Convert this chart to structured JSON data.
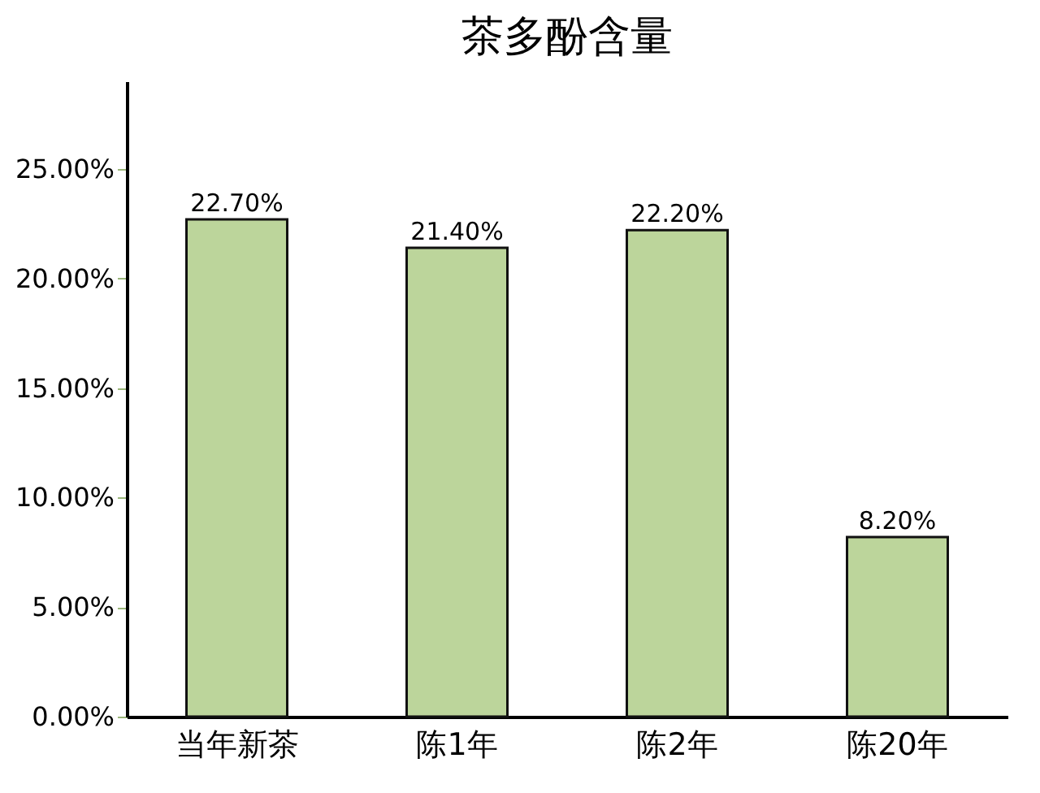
{
  "chart_data": {
    "type": "bar",
    "title": "茶多酚含量",
    "categories": [
      "当年新茶",
      "陈1年",
      "陈2年",
      "陈20年"
    ],
    "values": [
      22.7,
      21.4,
      22.2,
      8.2
    ],
    "value_labels": [
      "22.70%",
      "21.40%",
      "22.20%",
      "8.20%"
    ],
    "color": "#bcd59b",
    "ylim": [
      0,
      29
    ],
    "yticks": [
      {
        "value": 0,
        "label": "0.00%"
      },
      {
        "value": 5,
        "label": "5.00%"
      },
      {
        "value": 10,
        "label": "10.00%"
      },
      {
        "value": 15,
        "label": "15.00%"
      },
      {
        "value": 20,
        "label": "20.00%"
      },
      {
        "value": 25,
        "label": "25.00%"
      }
    ],
    "grid": false
  }
}
